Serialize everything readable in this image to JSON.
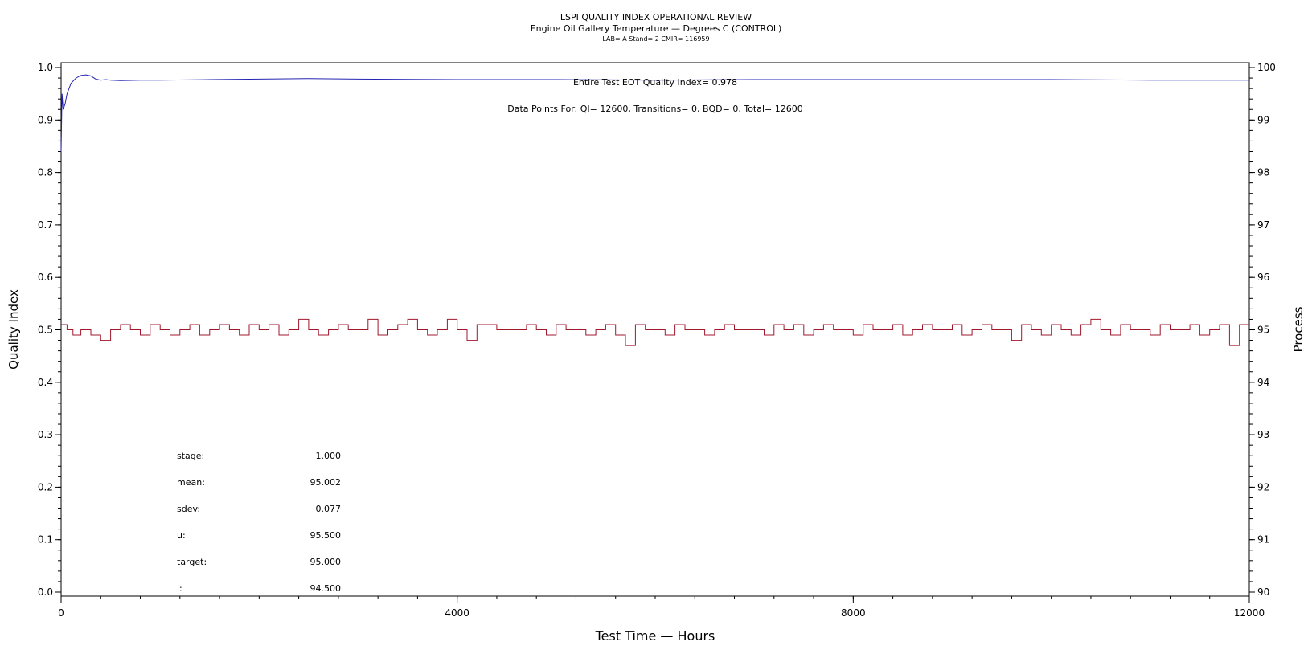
{
  "header": {
    "title": "LSPI QUALITY INDEX OPERATIONAL REVIEW",
    "subtitle": "Engine Oil Gallery Temperature — Degrees C (CONTROL)",
    "meta": "LAB= A Stand= 2 CMIR= 116959"
  },
  "annotations": {
    "qi": "Entire Test EOT Quality Index=   0.978",
    "points": "Data Points For: QI= 12600, Transitions=     0, BQD=     0, Total= 12600"
  },
  "stats": [
    {
      "label": "stage:",
      "value": "1.000"
    },
    {
      "label": "mean:",
      "value": "95.002"
    },
    {
      "label": "sdev:",
      "value": "0.077"
    },
    {
      "label": "u:",
      "value": "95.500"
    },
    {
      "label": "target:",
      "value": "95.000"
    },
    {
      "label": "l:",
      "value": "94.500"
    }
  ],
  "colors": {
    "quality_index": "#2424b4",
    "process": "#a0182c"
  },
  "chart_data": {
    "type": "line",
    "title": "LSPI QUALITY INDEX OPERATIONAL REVIEW",
    "subtitle": "Engine Oil Gallery Temperature — Degrees C (CONTROL)",
    "xlabel": "Test Time — Hours",
    "ylabel": "Quality Index",
    "y2label": "Process",
    "xlim": [
      0,
      12000
    ],
    "ylim": [
      0.0,
      1.0
    ],
    "y2lim": [
      90,
      100
    ],
    "xticks": [
      "0",
      "4000",
      "8000",
      "12000"
    ],
    "yticks": [
      "0.0",
      "0.1",
      "0.2",
      "0.3",
      "0.4",
      "0.5",
      "0.6",
      "0.7",
      "0.8",
      "0.9",
      "1.0"
    ],
    "y2ticks": [
      "90",
      "91",
      "92",
      "93",
      "94",
      "95",
      "96",
      "97",
      "98",
      "99",
      "100"
    ],
    "grid": false,
    "series": [
      {
        "axis": "left",
        "x": [
          0,
          10,
          20,
          40,
          60,
          80,
          100,
          150,
          200,
          250,
          300,
          350,
          400,
          450,
          500,
          600,
          800,
          1000,
          1500,
          2000,
          2500,
          3000,
          4000,
          5000,
          6000,
          7000,
          8000,
          9000,
          10000,
          11000,
          12000
        ],
        "y": [
          0.84,
          0.95,
          0.92,
          0.93,
          0.95,
          0.96,
          0.97,
          0.98,
          0.985,
          0.986,
          0.984,
          0.978,
          0.976,
          0.977,
          0.976,
          0.975,
          0.976,
          0.976,
          0.977,
          0.978,
          0.979,
          0.978,
          0.977,
          0.977,
          0.976,
          0.977,
          0.977,
          0.977,
          0.977,
          0.976,
          0.976
        ]
      },
      {
        "axis": "right",
        "x": [
          0,
          60,
          120,
          200,
          300,
          400,
          500,
          600,
          700,
          800,
          900,
          1000,
          1100,
          1200,
          1300,
          1400,
          1500,
          1600,
          1700,
          1800,
          1900,
          2000,
          2100,
          2200,
          2300,
          2400,
          2500,
          2600,
          2700,
          2800,
          2900,
          3000,
          3100,
          3200,
          3300,
          3400,
          3500,
          3600,
          3700,
          3800,
          3900,
          4000,
          4100,
          4200,
          4300,
          4400,
          4500,
          4600,
          4700,
          4800,
          4900,
          5000,
          5100,
          5200,
          5300,
          5400,
          5500,
          5600,
          5700,
          5800,
          5900,
          6000,
          6100,
          6200,
          6300,
          6400,
          6500,
          6600,
          6700,
          6800,
          6900,
          7000,
          7100,
          7200,
          7300,
          7400,
          7500,
          7600,
          7700,
          7800,
          7900,
          8000,
          8100,
          8200,
          8300,
          8400,
          8500,
          8600,
          8700,
          8800,
          8900,
          9000,
          9100,
          9200,
          9300,
          9400,
          9500,
          9600,
          9700,
          9800,
          9900,
          10000,
          10100,
          10200,
          10300,
          10400,
          10500,
          10600,
          10700,
          10800,
          10900,
          11000,
          11100,
          11200,
          11300,
          11400,
          11500,
          11600,
          11700,
          11800,
          11900,
          12000
        ],
        "y": [
          95.1,
          95.0,
          94.9,
          95.0,
          94.9,
          94.8,
          95.0,
          95.1,
          95.0,
          94.9,
          95.1,
          95.0,
          94.9,
          95.0,
          95.1,
          94.9,
          95.0,
          95.1,
          95.0,
          94.9,
          95.1,
          95.0,
          95.1,
          94.9,
          95.0,
          95.2,
          95.0,
          94.9,
          95.0,
          95.1,
          95.0,
          95.0,
          95.2,
          94.9,
          95.0,
          95.1,
          95.2,
          95.0,
          94.9,
          95.0,
          95.2,
          95.0,
          94.8,
          95.1,
          95.1,
          95.0,
          95.0,
          95.0,
          95.1,
          95.0,
          94.9,
          95.1,
          95.0,
          95.0,
          94.9,
          95.0,
          95.1,
          94.9,
          94.7,
          95.1,
          95.0,
          95.0,
          94.9,
          95.1,
          95.0,
          95.0,
          94.9,
          95.0,
          95.1,
          95.0,
          95.0,
          95.0,
          94.9,
          95.1,
          95.0,
          95.1,
          94.9,
          95.0,
          95.1,
          95.0,
          95.0,
          94.9,
          95.1,
          95.0,
          95.0,
          95.1,
          94.9,
          95.0,
          95.1,
          95.0,
          95.0,
          95.1,
          94.9,
          95.0,
          95.1,
          95.0,
          95.0,
          94.8,
          95.1,
          95.0,
          94.9,
          95.1,
          95.0,
          94.9,
          95.1,
          95.2,
          95.0,
          94.9,
          95.1,
          95.0,
          95.0,
          94.9,
          95.1,
          95.0,
          95.0,
          95.1,
          94.9,
          95.0,
          95.1,
          94.7,
          95.1,
          95.1
        ]
      }
    ]
  }
}
